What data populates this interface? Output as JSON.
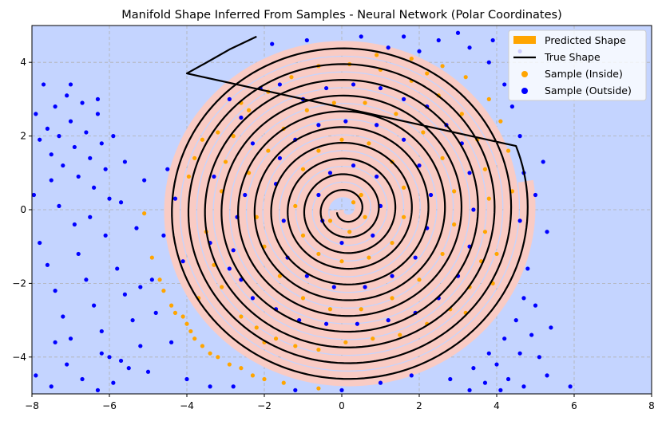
{
  "chart_data": {
    "type": "scatter",
    "title": "Manifold Shape Inferred From Samples - Neural Network (Polar Coordinates)",
    "xlabel": "",
    "ylabel": "",
    "xlim": [
      -8,
      8
    ],
    "ylim": [
      -5,
      5
    ],
    "x_ticks": [
      -8,
      -6,
      -4,
      -2,
      0,
      2,
      4,
      6,
      8
    ],
    "y_ticks": [
      -4,
      -2,
      0,
      2,
      4
    ],
    "x_tick_labels": [
      "−8",
      "−6",
      "−4",
      "−2",
      "0",
      "2",
      "4",
      "6",
      "8"
    ],
    "y_tick_labels": [
      "−4",
      "−2",
      "0",
      "2",
      "4"
    ],
    "grid": true,
    "legend_position": "top-right",
    "legend": [
      {
        "label": "Predicted Shape",
        "kind": "patch",
        "color": "#ffa500"
      },
      {
        "label": "True Shape",
        "kind": "line",
        "color": "#000000"
      },
      {
        "label": "Sample (Inside)",
        "kind": "marker",
        "color": "#ffa500"
      },
      {
        "label": "Sample (Outside)",
        "kind": "marker",
        "color": "#0000ff"
      }
    ],
    "colors": {
      "background": "#c4d4ff",
      "predicted_region": "#f9cbc4",
      "true_shape": "#000000",
      "inside": "#ffa500",
      "outside": "#0000ff"
    },
    "true_shape": {
      "spiral": {
        "form": "r = 0.068 * theta",
        "theta_range": [
          3.45,
          69.5
        ],
        "center": [
          0.1,
          0
        ]
      },
      "tail_polyline": [
        [
          -2.2,
          4.7
        ],
        [
          -2.9,
          4.35
        ],
        [
          -3.4,
          4.05
        ],
        [
          -4.0,
          3.7
        ]
      ]
    },
    "predicted_shape": {
      "form": "band around r = 0.068 * theta",
      "half_width": 0.2,
      "theta_range": [
        3.2,
        69.3
      ]
    },
    "series": [
      {
        "name": "Sample (Inside)",
        "points": [
          [
            -5.1,
            -0.1
          ],
          [
            -4.9,
            -1.3
          ],
          [
            -4.7,
            -1.9
          ],
          [
            -4.6,
            -2.2
          ],
          [
            -4.4,
            -2.6
          ],
          [
            -4.3,
            -2.8
          ],
          [
            -4.1,
            -2.9
          ],
          [
            -4.0,
            -3.1
          ],
          [
            -3.9,
            -3.3
          ],
          [
            -3.8,
            -3.5
          ],
          [
            -3.6,
            -3.7
          ],
          [
            -3.4,
            -3.9
          ],
          [
            -3.2,
            -4.0
          ],
          [
            -2.9,
            -4.2
          ],
          [
            -2.6,
            -4.3
          ],
          [
            -2.3,
            -4.5
          ],
          [
            -2.0,
            -4.6
          ],
          [
            -1.5,
            -4.7
          ],
          [
            -0.6,
            -4.85
          ],
          [
            -3.95,
            0.9
          ],
          [
            -3.8,
            1.4
          ],
          [
            -3.6,
            1.9
          ],
          [
            -3.5,
            -0.6
          ],
          [
            -3.2,
            2.1
          ],
          [
            -3.3,
            -1.5
          ],
          [
            -3.1,
            -2.1
          ],
          [
            -2.6,
            -2.9
          ],
          [
            -2.2,
            -3.2
          ],
          [
            -1.7,
            -3.5
          ],
          [
            -1.2,
            -3.7
          ],
          [
            -0.6,
            -3.8
          ],
          [
            0.1,
            -3.6
          ],
          [
            0.8,
            -3.5
          ],
          [
            1.5,
            -3.4
          ],
          [
            2.2,
            -3.1
          ],
          [
            2.8,
            -2.7
          ],
          [
            3.3,
            -2.1
          ],
          [
            3.6,
            -1.4
          ],
          [
            3.7,
            -0.6
          ],
          [
            3.8,
            0.3
          ],
          [
            3.7,
            1.1
          ],
          [
            3.5,
            1.9
          ],
          [
            3.1,
            2.6
          ],
          [
            2.5,
            3.1
          ],
          [
            1.8,
            3.5
          ],
          [
            1.0,
            3.8
          ],
          [
            0.2,
            3.95
          ],
          [
            -0.6,
            3.9
          ],
          [
            -1.3,
            3.6
          ],
          [
            -1.9,
            3.2
          ],
          [
            -2.4,
            2.7
          ],
          [
            -2.8,
            2.0
          ],
          [
            -3.0,
            1.3
          ],
          [
            -3.1,
            0.5
          ],
          [
            4.4,
            0.5
          ],
          [
            4.3,
            1.6
          ],
          [
            4.1,
            2.4
          ],
          [
            3.8,
            3.0
          ],
          [
            3.2,
            3.6
          ],
          [
            2.6,
            3.9
          ],
          [
            1.8,
            4.1
          ],
          [
            0.9,
            4.2
          ],
          [
            -2.4,
            1.0
          ],
          [
            -2.2,
            -0.2
          ],
          [
            -2.0,
            -1.0
          ],
          [
            -1.6,
            -1.8
          ],
          [
            -1.0,
            -2.4
          ],
          [
            -0.3,
            -2.7
          ],
          [
            0.5,
            -2.7
          ],
          [
            1.3,
            -2.4
          ],
          [
            2.0,
            -1.9
          ],
          [
            2.6,
            -1.2
          ],
          [
            2.9,
            -0.4
          ],
          [
            2.9,
            0.5
          ],
          [
            2.6,
            1.4
          ],
          [
            2.1,
            2.1
          ],
          [
            1.4,
            2.6
          ],
          [
            0.6,
            2.9
          ],
          [
            -0.2,
            2.9
          ],
          [
            -0.9,
            2.7
          ],
          [
            -1.5,
            2.2
          ],
          [
            -1.9,
            1.6
          ],
          [
            -1.2,
            0.1
          ],
          [
            -1.0,
            -0.7
          ],
          [
            -0.6,
            -1.2
          ],
          [
            0.0,
            -1.4
          ],
          [
            0.7,
            -1.3
          ],
          [
            1.3,
            -0.9
          ],
          [
            1.6,
            -0.2
          ],
          [
            1.6,
            0.6
          ],
          [
            1.3,
            1.3
          ],
          [
            0.7,
            1.8
          ],
          [
            0.0,
            1.9
          ],
          [
            -0.6,
            1.6
          ],
          [
            -1.0,
            1.1
          ],
          [
            -0.3,
            -0.3
          ],
          [
            0.2,
            -0.6
          ],
          [
            0.6,
            -0.2
          ],
          [
            0.5,
            0.4
          ],
          [
            0.3,
            0.2
          ],
          [
            2.2,
            3.7
          ],
          [
            -2.6,
            2.9
          ],
          [
            -3.7,
            -2.4
          ],
          [
            4.0,
            -1.2
          ],
          [
            3.9,
            -2.0
          ],
          [
            -2.0,
            -3.6
          ],
          [
            3.2,
            -2.8
          ]
        ]
      },
      {
        "name": "Sample (Outside)",
        "points": [
          [
            -7.9,
            2.6
          ],
          [
            -7.8,
            1.9
          ],
          [
            -7.7,
            3.4
          ],
          [
            -7.6,
            2.2
          ],
          [
            -7.5,
            1.5
          ],
          [
            -7.4,
            2.8
          ],
          [
            -7.3,
            2.0
          ],
          [
            -7.2,
            1.2
          ],
          [
            -7.1,
            3.1
          ],
          [
            -7.0,
            2.4
          ],
          [
            -6.9,
            1.7
          ],
          [
            -6.8,
            0.9
          ],
          [
            -6.7,
            2.9
          ],
          [
            -6.6,
            2.1
          ],
          [
            -6.5,
            1.4
          ],
          [
            -6.4,
            0.6
          ],
          [
            -6.3,
            2.6
          ],
          [
            -6.2,
            1.8
          ],
          [
            -6.1,
            1.1
          ],
          [
            -6.0,
            0.3
          ],
          [
            -7.8,
            -0.9
          ],
          [
            -7.6,
            -1.5
          ],
          [
            -7.4,
            -2.2
          ],
          [
            -7.2,
            -2.9
          ],
          [
            -7.0,
            -3.5
          ],
          [
            -6.8,
            -1.2
          ],
          [
            -6.6,
            -1.9
          ],
          [
            -6.4,
            -2.6
          ],
          [
            -6.2,
            -3.3
          ],
          [
            -6.0,
            -4.0
          ],
          [
            -5.8,
            -1.6
          ],
          [
            -5.6,
            -2.3
          ],
          [
            -5.4,
            -3.0
          ],
          [
            -5.2,
            -3.7
          ],
          [
            -5.0,
            -4.4
          ],
          [
            -7.9,
            -4.5
          ],
          [
            -7.5,
            -4.8
          ],
          [
            -7.1,
            -4.2
          ],
          [
            -6.7,
            -4.6
          ],
          [
            -6.3,
            -4.9
          ],
          [
            -5.9,
            -4.7
          ],
          [
            -5.5,
            -4.3
          ],
          [
            -7.95,
            0.4
          ],
          [
            -7.3,
            0.1
          ],
          [
            -6.9,
            -0.4
          ],
          [
            -6.5,
            -0.2
          ],
          [
            -6.1,
            -0.7
          ],
          [
            -5.7,
            0.2
          ],
          [
            -5.3,
            -0.5
          ],
          [
            -5.6,
            1.3
          ],
          [
            -5.9,
            2.0
          ],
          [
            -6.3,
            3.0
          ],
          [
            -7.0,
            3.4
          ],
          [
            -7.5,
            0.8
          ],
          [
            -4.6,
            -0.7
          ],
          [
            -4.3,
            0.3
          ],
          [
            -4.1,
            -1.4
          ],
          [
            -4.5,
            1.1
          ],
          [
            -4.8,
            -2.8
          ],
          [
            -5.2,
            -2.1
          ],
          [
            -4.4,
            -3.6
          ],
          [
            -2.7,
            -0.2
          ],
          [
            -2.5,
            0.4
          ],
          [
            -2.8,
            -1.1
          ],
          [
            -2.3,
            1.8
          ],
          [
            -2.6,
            2.5
          ],
          [
            -2.9,
            3.0
          ],
          [
            -3.3,
            0.9
          ],
          [
            -3.4,
            -0.9
          ],
          [
            -2.1,
            3.3
          ],
          [
            -1.6,
            3.4
          ],
          [
            -1.0,
            3.0
          ],
          [
            -0.4,
            3.3
          ],
          [
            0.3,
            3.4
          ],
          [
            1.0,
            3.3
          ],
          [
            1.6,
            3.0
          ],
          [
            2.2,
            2.8
          ],
          [
            2.7,
            2.3
          ],
          [
            3.1,
            1.8
          ],
          [
            3.3,
            1.0
          ],
          [
            3.4,
            0.0
          ],
          [
            3.3,
            -1.0
          ],
          [
            3.0,
            -1.8
          ],
          [
            2.5,
            -2.4
          ],
          [
            1.9,
            -2.8
          ],
          [
            1.2,
            -3.0
          ],
          [
            0.4,
            -3.1
          ],
          [
            -0.4,
            -3.1
          ],
          [
            -1.1,
            -3.0
          ],
          [
            -1.7,
            -2.7
          ],
          [
            -2.3,
            -2.4
          ],
          [
            -2.6,
            -1.9
          ],
          [
            -2.9,
            -1.6
          ],
          [
            -1.7,
            0.7
          ],
          [
            -1.5,
            -0.3
          ],
          [
            -1.4,
            -1.3
          ],
          [
            -0.9,
            -1.8
          ],
          [
            -0.2,
            -2.1
          ],
          [
            0.6,
            -2.1
          ],
          [
            1.3,
            -1.8
          ],
          [
            1.9,
            -1.3
          ],
          [
            2.2,
            -0.5
          ],
          [
            2.3,
            0.4
          ],
          [
            2.0,
            1.2
          ],
          [
            1.6,
            1.9
          ],
          [
            0.9,
            2.3
          ],
          [
            0.1,
            2.4
          ],
          [
            -0.6,
            2.3
          ],
          [
            -1.2,
            1.9
          ],
          [
            -1.6,
            1.4
          ],
          [
            -0.6,
            0.4
          ],
          [
            -0.5,
            -0.3
          ],
          [
            0.0,
            -0.9
          ],
          [
            0.8,
            -0.7
          ],
          [
            1.0,
            0.1
          ],
          [
            0.9,
            0.9
          ],
          [
            0.3,
            1.2
          ],
          [
            -0.3,
            1.0
          ],
          [
            4.6,
            -0.3
          ],
          [
            4.7,
            1.0
          ],
          [
            4.6,
            2.0
          ],
          [
            4.4,
            2.8
          ],
          [
            4.2,
            3.4
          ],
          [
            3.8,
            4.0
          ],
          [
            3.3,
            4.4
          ],
          [
            2.5,
            4.6
          ],
          [
            1.6,
            4.7
          ],
          [
            4.8,
            -1.6
          ],
          [
            4.7,
            -2.4
          ],
          [
            4.5,
            -3.0
          ],
          [
            4.2,
            -3.5
          ],
          [
            3.8,
            -3.9
          ],
          [
            3.4,
            -4.3
          ],
          [
            2.8,
            -4.6
          ],
          [
            4.0,
            -4.2
          ],
          [
            4.3,
            -4.6
          ],
          [
            4.6,
            -3.9
          ],
          [
            4.9,
            -3.4
          ],
          [
            5.1,
            -4.0
          ],
          [
            5.3,
            -4.5
          ],
          [
            4.7,
            -4.8
          ],
          [
            3.7,
            -4.7
          ],
          [
            3.3,
            -4.9
          ],
          [
            4.1,
            -4.9
          ],
          [
            5.4,
            -3.2
          ],
          [
            5.0,
            -2.6
          ],
          [
            5.2,
            1.3
          ],
          [
            5.0,
            0.4
          ],
          [
            5.3,
            -0.6
          ],
          [
            3.9,
            4.6
          ],
          [
            4.6,
            4.3
          ],
          [
            3.0,
            4.8
          ],
          [
            5.9,
            -4.8
          ],
          [
            -0.9,
            4.6
          ],
          [
            -1.8,
            4.5
          ],
          [
            0.5,
            4.7
          ],
          [
            1.2,
            4.4
          ],
          [
            2.0,
            4.3
          ],
          [
            -4.0,
            -4.6
          ],
          [
            -3.4,
            -4.8
          ],
          [
            -2.8,
            -4.8
          ],
          [
            -1.2,
            -4.9
          ],
          [
            0.0,
            -4.9
          ],
          [
            1.0,
            -4.7
          ],
          [
            1.8,
            -4.5
          ],
          [
            -6.2,
            -3.9
          ],
          [
            -5.7,
            -4.1
          ],
          [
            -7.4,
            -3.6
          ],
          [
            -5.1,
            0.8
          ],
          [
            -4.9,
            -1.9
          ]
        ]
      }
    ]
  }
}
